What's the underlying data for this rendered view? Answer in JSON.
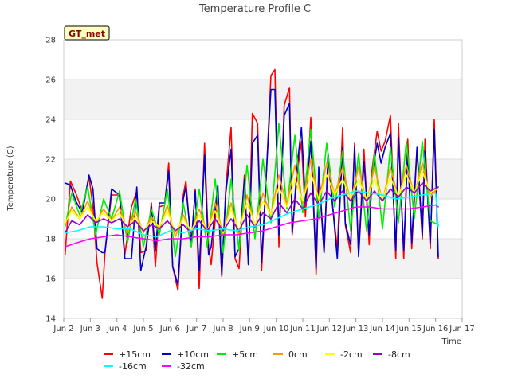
{
  "chart_data": {
    "type": "line",
    "title": "Temperature Profile C",
    "xlabel": "Time",
    "ylabel": "Temperature (C)",
    "badge": "GT_met",
    "ylim": [
      14,
      28
    ],
    "xlim": [
      2,
      17
    ],
    "y_ticks": [
      "14",
      "16",
      "18",
      "20",
      "22",
      "24",
      "26",
      "28"
    ],
    "x_ticks": [
      "Jun 2",
      "Jun 3",
      "Jun 4",
      "Jun 5",
      "Jun 6",
      "Jun 7",
      "Jun 8",
      "Jun 9",
      "Jun 10",
      "Jun 11",
      "Jun 12",
      "Jun 13",
      "Jun 14",
      "Jun 15",
      "Jun 16",
      "Jun 17"
    ],
    "grid": true,
    "legend_position": "bottom",
    "series": [
      {
        "name": "+15cm",
        "color": "#ff0000",
        "x": [
          2.05,
          2.25,
          2.45,
          2.7,
          2.95,
          3.1,
          3.25,
          3.45,
          3.55,
          3.8,
          4.1,
          4.3,
          4.55,
          4.75,
          4.9,
          5.1,
          5.3,
          5.45,
          5.6,
          5.8,
          5.95,
          6.1,
          6.3,
          6.5,
          6.6,
          6.8,
          6.95,
          7.1,
          7.3,
          7.45,
          7.55,
          7.8,
          7.95,
          8.1,
          8.3,
          8.45,
          8.6,
          8.8,
          8.95,
          9.1,
          9.3,
          9.45,
          9.6,
          9.8,
          9.95,
          10.1,
          10.3,
          10.5,
          10.6,
          10.8,
          10.95,
          11.1,
          11.3,
          11.5,
          11.6,
          11.8,
          11.95,
          12.1,
          12.3,
          12.5,
          12.6,
          12.8,
          12.95,
          13.1,
          13.3,
          13.5,
          13.6,
          13.8,
          13.95,
          14.1,
          14.3,
          14.5,
          14.6,
          14.8,
          14.95,
          15.1,
          15.3,
          15.5,
          15.6,
          15.8,
          15.95,
          16.1
        ],
        "y": [
          17.2,
          20.9,
          20.3,
          19.4,
          21.1,
          19.6,
          16.8,
          15.0,
          17.3,
          20.2,
          20.2,
          17.2,
          19.6,
          20.4,
          17.3,
          17.4,
          19.8,
          16.6,
          19.6,
          19.7,
          21.8,
          16.6,
          15.4,
          20.2,
          20.9,
          17.6,
          20.5,
          15.5,
          22.8,
          17.6,
          16.7,
          20.4,
          16.1,
          20.5,
          23.6,
          17.0,
          16.5,
          21.2,
          16.7,
          24.3,
          23.8,
          16.4,
          20.4,
          26.2,
          26.5,
          17.6,
          24.7,
          25.6,
          18.2,
          21.4,
          22.9,
          19.1,
          24.1,
          16.2,
          21.2,
          17.3,
          22.0,
          19.9,
          17.5,
          23.6,
          18.7,
          17.3,
          22.8,
          17.2,
          22.5,
          17.7,
          21.4,
          23.4,
          22.4,
          22.9,
          24.2,
          17.0,
          23.8,
          17.0,
          23.0,
          17.5,
          22.5,
          18.0,
          23.0,
          17.5,
          24.0,
          17.0
        ]
      },
      {
        "name": "+10cm",
        "color": "#0000cc",
        "x": [
          2.05,
          2.25,
          2.45,
          2.7,
          2.95,
          3.1,
          3.25,
          3.45,
          3.55,
          3.8,
          4.1,
          4.3,
          4.55,
          4.75,
          4.9,
          5.1,
          5.3,
          5.45,
          5.6,
          5.8,
          5.95,
          6.1,
          6.3,
          6.5,
          6.6,
          6.8,
          6.95,
          7.1,
          7.3,
          7.45,
          7.55,
          7.8,
          7.95,
          8.1,
          8.3,
          8.45,
          8.6,
          8.8,
          8.95,
          9.1,
          9.3,
          9.45,
          9.6,
          9.8,
          9.95,
          10.1,
          10.3,
          10.5,
          10.6,
          10.8,
          10.95,
          11.1,
          11.3,
          11.5,
          11.6,
          11.8,
          11.95,
          12.1,
          12.3,
          12.5,
          12.6,
          12.8,
          12.95,
          13.1,
          13.3,
          13.5,
          13.6,
          13.8,
          13.95,
          14.1,
          14.3,
          14.5,
          14.6,
          14.8,
          14.95,
          15.1,
          15.3,
          15.5,
          15.6,
          15.8,
          15.95,
          16.1
        ],
        "y": [
          20.8,
          20.7,
          19.9,
          19.3,
          21.2,
          20.5,
          17.5,
          17.3,
          17.3,
          20.5,
          20.2,
          17.0,
          17.0,
          20.6,
          16.4,
          17.6,
          19.6,
          17.4,
          19.8,
          19.8,
          21.4,
          16.6,
          15.7,
          20.0,
          20.6,
          17.8,
          20.4,
          16.4,
          22.2,
          17.2,
          17.6,
          20.7,
          16.2,
          20.3,
          22.5,
          17.1,
          17.5,
          21.0,
          16.7,
          22.8,
          23.2,
          16.8,
          20.6,
          25.5,
          25.5,
          18.2,
          24.2,
          24.8,
          18.3,
          21.8,
          23.6,
          19.8,
          22.9,
          16.5,
          21.6,
          17.3,
          22.3,
          20.0,
          17.0,
          22.6,
          18.8,
          17.7,
          22.6,
          17.1,
          21.9,
          18.2,
          21.1,
          22.8,
          21.8,
          22.6,
          23.3,
          17.4,
          23.1,
          17.4,
          22.4,
          17.8,
          22.6,
          18.2,
          22.4,
          17.8,
          23.5,
          17.1
        ]
      },
      {
        "name": "+5cm",
        "color": "#00ee00",
        "x": [
          2.05,
          2.3,
          2.6,
          2.9,
          3.2,
          3.5,
          3.8,
          4.1,
          4.4,
          4.7,
          5.0,
          5.3,
          5.6,
          5.9,
          6.2,
          6.5,
          6.8,
          7.1,
          7.4,
          7.7,
          8.0,
          8.3,
          8.6,
          8.9,
          9.2,
          9.5,
          9.8,
          10.1,
          10.4,
          10.7,
          11.0,
          11.3,
          11.6,
          11.9,
          12.2,
          12.5,
          12.8,
          13.1,
          13.4,
          13.7,
          14.0,
          14.3,
          14.6,
          14.9,
          15.2,
          15.5,
          15.8,
          16.1
        ],
        "y": [
          18.6,
          20.3,
          19.2,
          20.6,
          18.2,
          20.0,
          19.0,
          20.4,
          17.8,
          20.0,
          17.6,
          19.5,
          18.2,
          20.5,
          17.1,
          19.8,
          17.6,
          20.5,
          17.6,
          21.0,
          17.3,
          21.0,
          17.4,
          21.7,
          18.0,
          22.0,
          18.8,
          23.8,
          19.5,
          23.2,
          19.3,
          23.5,
          19.0,
          22.8,
          19.6,
          22.4,
          18.4,
          22.3,
          18.4,
          22.3,
          18.5,
          22.6,
          18.8,
          22.9,
          19.0,
          22.9,
          18.9,
          18.7
        ]
      },
      {
        "name": "0cm",
        "color": "#ff9900",
        "x": [
          2.05,
          2.3,
          2.6,
          2.9,
          3.2,
          3.5,
          3.8,
          4.1,
          4.4,
          4.7,
          5.0,
          5.3,
          5.6,
          5.9,
          6.2,
          6.5,
          6.8,
          7.1,
          7.4,
          7.7,
          8.0,
          8.3,
          8.6,
          8.9,
          9.2,
          9.5,
          9.8,
          10.1,
          10.4,
          10.7,
          11.0,
          11.3,
          11.6,
          11.9,
          12.2,
          12.5,
          12.8,
          13.1,
          13.4,
          13.7,
          14.0,
          14.3,
          14.6,
          14.9,
          15.2,
          15.5,
          15.8,
          16.1
        ],
        "y": [
          18.7,
          19.6,
          19.0,
          19.9,
          18.8,
          19.5,
          18.9,
          19.6,
          18.3,
          19.4,
          18.3,
          19.1,
          18.5,
          19.7,
          18.1,
          19.2,
          18.3,
          19.5,
          18.3,
          19.8,
          18.2,
          19.8,
          18.2,
          20.2,
          18.6,
          20.3,
          19.2,
          21.2,
          19.7,
          21.7,
          19.8,
          22.0,
          19.9,
          21.8,
          20.2,
          21.6,
          19.9,
          21.6,
          19.8,
          21.6,
          19.9,
          21.6,
          20.0,
          21.7,
          20.2,
          21.8,
          20.1,
          20.6
        ]
      },
      {
        "name": "-2cm",
        "color": "#ffff00",
        "x": [
          2.05,
          2.3,
          2.6,
          2.9,
          3.2,
          3.5,
          3.8,
          4.1,
          4.4,
          4.7,
          5.0,
          5.3,
          5.6,
          5.9,
          6.2,
          6.5,
          6.8,
          7.1,
          7.4,
          7.7,
          8.0,
          8.3,
          8.6,
          8.9,
          9.2,
          9.5,
          9.8,
          10.1,
          10.4,
          10.7,
          11.0,
          11.3,
          11.6,
          11.9,
          12.2,
          12.5,
          12.8,
          13.1,
          13.4,
          13.7,
          14.0,
          14.3,
          14.6,
          14.9,
          15.2,
          15.5,
          15.8,
          16.1
        ],
        "y": [
          18.8,
          19.4,
          19.0,
          19.6,
          18.9,
          19.3,
          18.9,
          19.3,
          18.5,
          19.1,
          18.4,
          18.9,
          18.6,
          19.4,
          18.3,
          19.0,
          18.4,
          19.2,
          18.4,
          19.4,
          18.3,
          19.5,
          18.4,
          19.8,
          18.7,
          19.9,
          19.2,
          20.6,
          19.6,
          21.0,
          19.9,
          21.3,
          20.0,
          21.2,
          20.2,
          21.0,
          20.0,
          21.0,
          20.0,
          21.0,
          20.0,
          21.1,
          20.1,
          21.2,
          20.3,
          21.4,
          20.3,
          20.6
        ]
      },
      {
        "name": "-8cm",
        "color": "#9900cc",
        "x": [
          2.05,
          2.3,
          2.6,
          2.9,
          3.2,
          3.5,
          3.8,
          4.1,
          4.4,
          4.7,
          5.0,
          5.3,
          5.6,
          5.9,
          6.2,
          6.5,
          6.8,
          7.1,
          7.4,
          7.7,
          8.0,
          8.3,
          8.6,
          8.9,
          9.2,
          9.5,
          9.8,
          10.1,
          10.4,
          10.7,
          11.0,
          11.3,
          11.6,
          11.9,
          12.2,
          12.5,
          12.8,
          13.1,
          13.4,
          13.7,
          14.0,
          14.3,
          14.6,
          14.9,
          15.2,
          15.5,
          15.8,
          16.1
        ],
        "y": [
          18.3,
          18.9,
          18.7,
          19.2,
          18.8,
          19.0,
          18.8,
          19.0,
          18.6,
          18.9,
          18.4,
          18.7,
          18.5,
          18.9,
          18.4,
          18.7,
          18.3,
          18.9,
          18.4,
          19.0,
          18.4,
          19.0,
          18.4,
          19.2,
          18.6,
          19.3,
          19.0,
          19.8,
          19.3,
          20.0,
          19.5,
          20.3,
          19.7,
          20.4,
          19.9,
          20.4,
          19.9,
          20.4,
          19.9,
          20.4,
          19.9,
          20.5,
          20.1,
          20.6,
          20.3,
          20.8,
          20.4,
          20.6
        ]
      },
      {
        "name": "-16cm",
        "color": "#00ffff",
        "x": [
          2.05,
          2.5,
          3.0,
          3.5,
          4.0,
          4.5,
          5.0,
          5.5,
          6.0,
          6.5,
          7.0,
          7.5,
          8.0,
          8.5,
          9.0,
          9.5,
          10.0,
          10.5,
          11.0,
          11.5,
          12.0,
          12.5,
          13.0,
          13.5,
          14.0,
          14.5,
          15.0,
          15.5,
          16.0,
          16.1
        ],
        "y": [
          18.3,
          18.4,
          18.6,
          18.6,
          18.5,
          18.5,
          18.2,
          18.1,
          18.4,
          18.3,
          18.5,
          18.4,
          18.5,
          18.4,
          18.6,
          18.7,
          19.0,
          19.3,
          19.5,
          19.7,
          20.0,
          20.2,
          20.4,
          20.3,
          20.2,
          20.0,
          20.1,
          20.2,
          20.3,
          18.6
        ]
      },
      {
        "name": "-32cm",
        "color": "#ff00ff",
        "x": [
          2.05,
          2.5,
          3.0,
          3.5,
          4.0,
          4.5,
          5.0,
          5.5,
          6.0,
          6.5,
          7.0,
          7.5,
          8.0,
          8.5,
          9.0,
          9.5,
          10.0,
          10.5,
          11.0,
          11.5,
          12.0,
          12.5,
          13.0,
          13.5,
          14.0,
          14.5,
          15.0,
          15.5,
          16.0,
          16.1
        ],
        "y": [
          17.6,
          17.8,
          18.0,
          18.1,
          18.2,
          18.1,
          18.0,
          17.9,
          18.0,
          18.0,
          18.1,
          18.1,
          18.2,
          18.2,
          18.3,
          18.4,
          18.6,
          18.8,
          18.9,
          19.0,
          19.2,
          19.4,
          19.6,
          19.6,
          19.5,
          19.5,
          19.5,
          19.6,
          19.7,
          19.6
        ]
      }
    ]
  }
}
